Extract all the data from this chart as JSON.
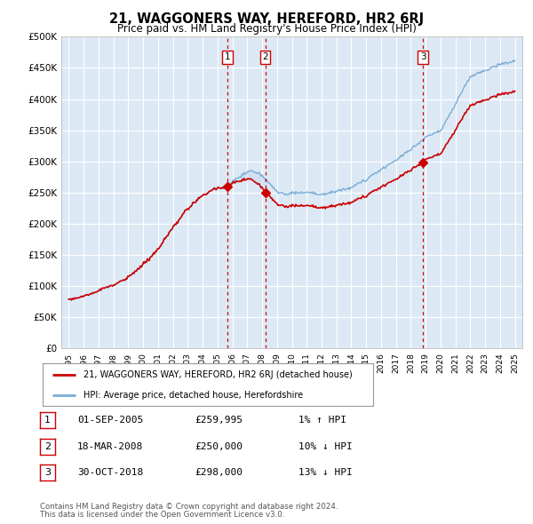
{
  "title": "21, WAGGONERS WAY, HEREFORD, HR2 6RJ",
  "subtitle": "Price paid vs. HM Land Registry's House Price Index (HPI)",
  "background_color": "#ffffff",
  "plot_bg_color": "#dce9f5",
  "grid_color": "#ffffff",
  "hpi_color": "#7aadd4",
  "hpi_fill_color": "#c5d9ee",
  "sold_color": "#cc0000",
  "vline_color": "#cc0000",
  "shade_color": "#c5d9f0",
  "ylim": [
    0,
    500000
  ],
  "yticks": [
    0,
    50000,
    100000,
    150000,
    200000,
    250000,
    300000,
    350000,
    400000,
    450000,
    500000
  ],
  "ytick_labels": [
    "£0",
    "£50K",
    "£100K",
    "£150K",
    "£200K",
    "£250K",
    "£300K",
    "£350K",
    "£400K",
    "£450K",
    "£500K"
  ],
  "xlim": [
    1994.5,
    2025.5
  ],
  "sales": [
    {
      "date_year": 2005.67,
      "price": 259995,
      "label": "1"
    },
    {
      "date_year": 2008.21,
      "price": 250000,
      "label": "2"
    },
    {
      "date_year": 2018.83,
      "price": 298000,
      "label": "3"
    }
  ],
  "sale_labels_info": [
    {
      "label": "1",
      "date": "01-SEP-2005",
      "price": "£259,995",
      "hpi_note": "1% ↑ HPI"
    },
    {
      "label": "2",
      "date": "18-MAR-2008",
      "price": "£250,000",
      "hpi_note": "10% ↓ HPI"
    },
    {
      "label": "3",
      "date": "30-OCT-2018",
      "price": "£298,000",
      "hpi_note": "13% ↓ HPI"
    }
  ],
  "legend_line1": "21, WAGGONERS WAY, HEREFORD, HR2 6RJ (detached house)",
  "legend_line2": "HPI: Average price, detached house, Herefordshire",
  "footer1": "Contains HM Land Registry data © Crown copyright and database right 2024.",
  "footer2": "This data is licensed under the Open Government Licence v3.0."
}
